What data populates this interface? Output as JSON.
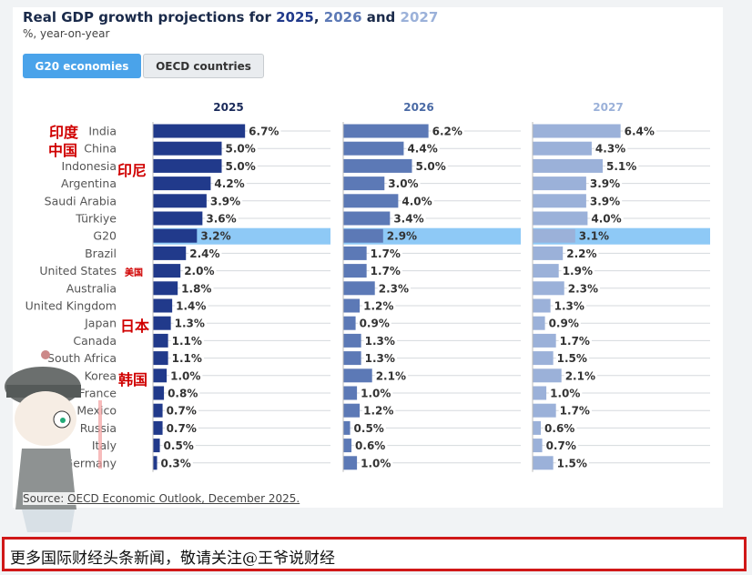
{
  "title": {
    "prefix": "Real GDP growth projections for ",
    "y1": "2025",
    ", ": ", ",
    "y2": "2026",
    "and": " and ",
    "y3": "2027"
  },
  "subtitle": "%, year-on-year",
  "tabs": [
    {
      "label": "G20 economies",
      "active": true
    },
    {
      "label": "OECD countries",
      "active": false
    }
  ],
  "source": {
    "prefix": "Source: ",
    "link": "OECD Economic Outlook, December 2025."
  },
  "overlay_labels": {
    "india": "印度",
    "china": "中国",
    "indonesia": "印尼",
    "us": "美国",
    "japan": "日本",
    "korea": "韩国"
  },
  "banner": "更多国际财经头条新闻，敬请关注@王爷说财经",
  "colors": {
    "2025": "#213a8b",
    "2026": "#5c79b6",
    "2027": "#9bb1d9",
    "highlight": "#8ec9f6"
  },
  "chart_data": {
    "type": "bar",
    "orientation": "horizontal",
    "categories": [
      "India",
      "China",
      "Indonesia",
      "Argentina",
      "Saudi Arabia",
      "Türkiye",
      "G20",
      "Brazil",
      "United States",
      "Australia",
      "United Kingdom",
      "Japan",
      "Canada",
      "South Africa",
      "Korea",
      "France",
      "Mexico",
      "Russia",
      "Italy",
      "Germany"
    ],
    "highlight": "G20",
    "unit": "%",
    "series": [
      {
        "name": "2025",
        "values": [
          6.7,
          5.0,
          5.0,
          4.2,
          3.9,
          3.6,
          3.2,
          2.4,
          2.0,
          1.8,
          1.4,
          1.3,
          1.1,
          1.1,
          1.0,
          0.8,
          0.7,
          0.7,
          0.5,
          0.3
        ]
      },
      {
        "name": "2026",
        "values": [
          6.2,
          4.4,
          5.0,
          3.0,
          4.0,
          3.4,
          2.9,
          1.7,
          1.7,
          2.3,
          1.2,
          0.9,
          1.3,
          1.3,
          2.1,
          1.0,
          1.2,
          0.5,
          0.6,
          1.0
        ]
      },
      {
        "name": "2027",
        "values": [
          6.4,
          4.3,
          5.1,
          3.9,
          3.9,
          4.0,
          3.1,
          2.2,
          1.9,
          2.3,
          1.3,
          0.9,
          1.7,
          1.5,
          2.1,
          1.0,
          1.7,
          0.6,
          0.7,
          1.5
        ]
      }
    ]
  }
}
